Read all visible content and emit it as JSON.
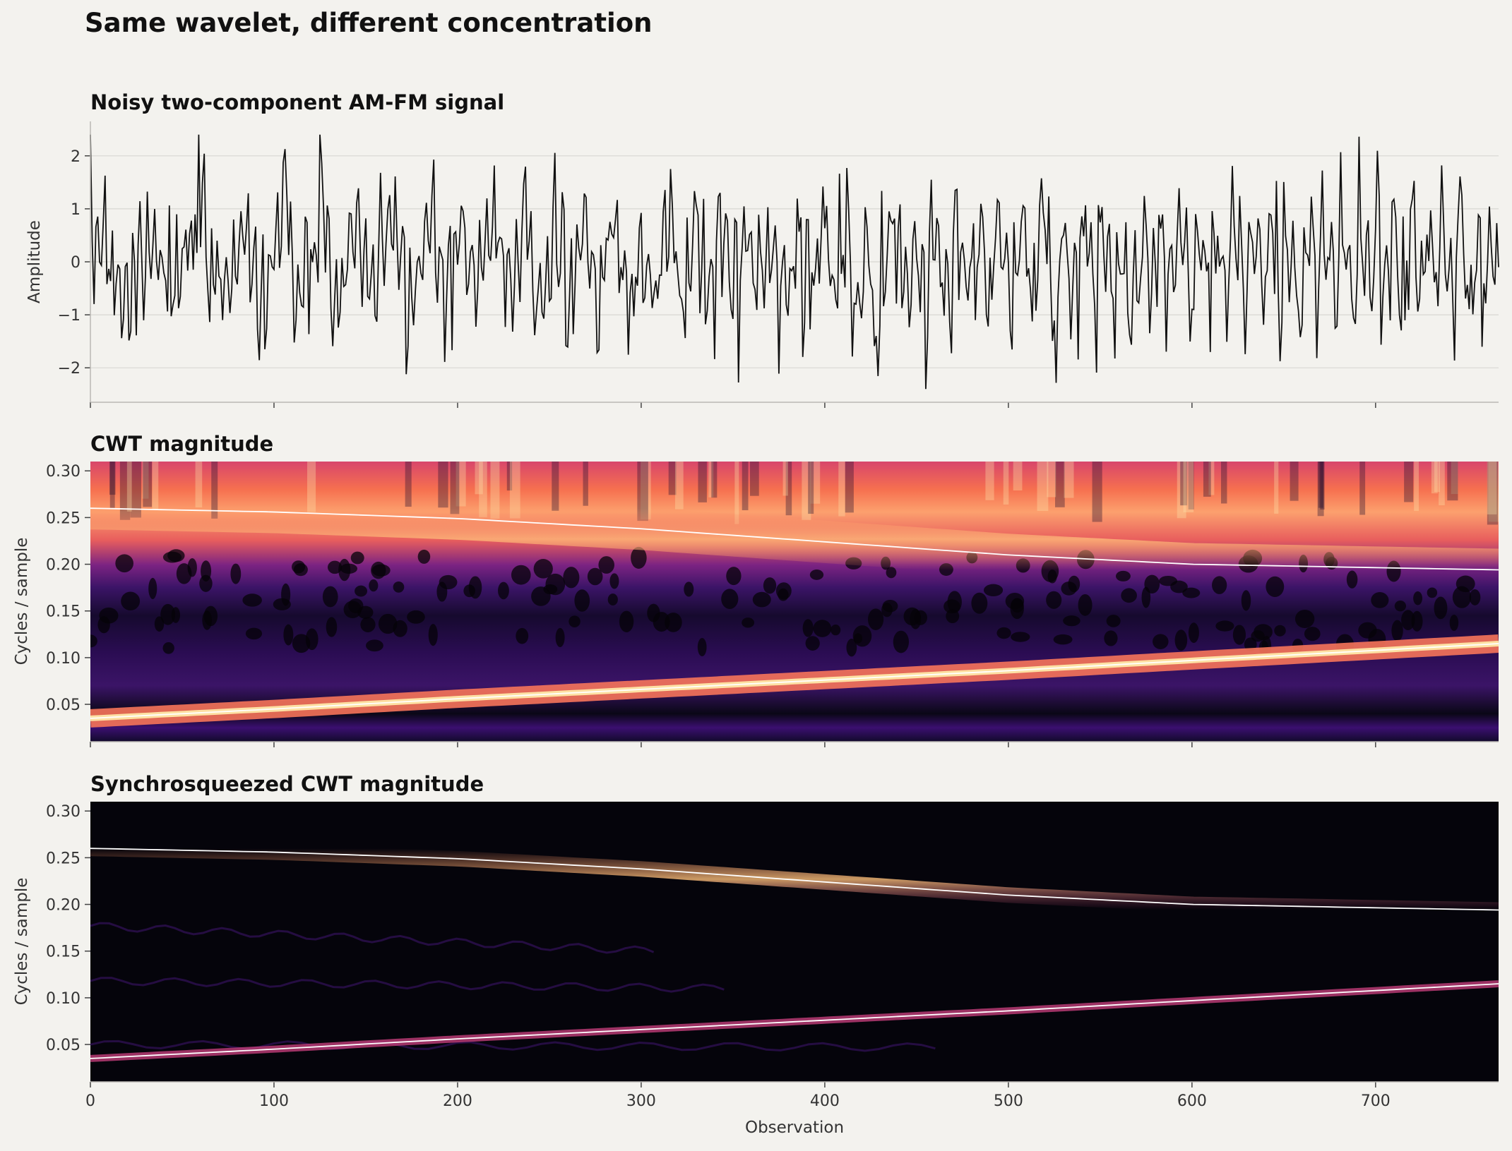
{
  "figure": {
    "suptitle": "Same wavelet, different concentration",
    "xlabel": "Observation"
  },
  "chart_data": [
    {
      "type": "line",
      "title": "Noisy two-component AM-FM signal",
      "xlabel": "",
      "ylabel": "Amplitude",
      "xlim": [
        0,
        767
      ],
      "ylim": [
        -2.65,
        2.65
      ],
      "yticks": [
        -2,
        -1,
        0,
        1,
        2
      ],
      "ytick_labels": [
        "−2",
        "−1",
        "0",
        "1",
        "2"
      ],
      "xticks": [
        0,
        100,
        200,
        300,
        400,
        500,
        600,
        700
      ],
      "grid": "horizontal",
      "line_color": "#111111",
      "n_samples": 768,
      "series": [
        {
          "name": "",
          "values_summary": "noisy oscillation between about -2.4 and 2.4"
        }
      ]
    },
    {
      "type": "heatmap",
      "title": "CWT magnitude",
      "ylabel": "Cycles / sample",
      "xlim": [
        0,
        767
      ],
      "ylim": [
        0.01,
        0.31
      ],
      "yticks": [
        0.05,
        0.1,
        0.15,
        0.2,
        0.25,
        0.3
      ],
      "ytick_labels": [
        "0.05",
        "0.10",
        "0.15",
        "0.20",
        "0.25",
        "0.30"
      ],
      "xticks": [
        0,
        100,
        200,
        300,
        400,
        500,
        600,
        700
      ],
      "colormap": "magma",
      "ridge_color": "#ffffff",
      "ridges": [
        {
          "x": [
            0,
            100,
            200,
            300,
            400,
            500,
            600,
            767
          ],
          "y": [
            0.26,
            0.256,
            0.249,
            0.238,
            0.224,
            0.21,
            0.2,
            0.194
          ]
        },
        {
          "x": [
            0,
            100,
            200,
            300,
            400,
            500,
            600,
            767
          ],
          "y": [
            0.035,
            0.045,
            0.056,
            0.066,
            0.076,
            0.086,
            0.097,
            0.115
          ]
        }
      ]
    },
    {
      "type": "heatmap",
      "title": "Synchrosqueezed CWT magnitude",
      "xlabel": "Observation",
      "ylabel": "Cycles / sample",
      "xlim": [
        0,
        767
      ],
      "ylim": [
        0.01,
        0.31
      ],
      "yticks": [
        0.05,
        0.1,
        0.15,
        0.2,
        0.25,
        0.3
      ],
      "ytick_labels": [
        "0.05",
        "0.10",
        "0.15",
        "0.20",
        "0.25",
        "0.30"
      ],
      "xticks": [
        0,
        100,
        200,
        300,
        400,
        500,
        600,
        700
      ],
      "xtick_labels": [
        "0",
        "100",
        "200",
        "300",
        "400",
        "500",
        "600",
        "700"
      ],
      "colormap": "magma",
      "ridge_color": "#ffffff",
      "ridges": [
        {
          "x": [
            0,
            100,
            200,
            300,
            400,
            500,
            600,
            767
          ],
          "y": [
            0.26,
            0.256,
            0.249,
            0.238,
            0.224,
            0.21,
            0.2,
            0.194
          ]
        },
        {
          "x": [
            0,
            100,
            200,
            300,
            400,
            500,
            600,
            767
          ],
          "y": [
            0.035,
            0.045,
            0.056,
            0.066,
            0.076,
            0.086,
            0.097,
            0.115
          ]
        }
      ]
    }
  ]
}
